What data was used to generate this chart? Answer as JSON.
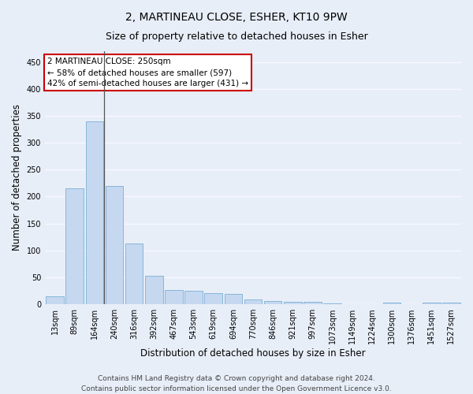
{
  "title": "2, MARTINEAU CLOSE, ESHER, KT10 9PW",
  "subtitle": "Size of property relative to detached houses in Esher",
  "xlabel": "Distribution of detached houses by size in Esher",
  "ylabel": "Number of detached properties",
  "categories": [
    "13sqm",
    "89sqm",
    "164sqm",
    "240sqm",
    "316sqm",
    "392sqm",
    "467sqm",
    "543sqm",
    "619sqm",
    "694sqm",
    "770sqm",
    "846sqm",
    "921sqm",
    "997sqm",
    "1073sqm",
    "1149sqm",
    "1224sqm",
    "1300sqm",
    "1376sqm",
    "1451sqm",
    "1527sqm"
  ],
  "values": [
    15,
    215,
    340,
    220,
    112,
    53,
    26,
    25,
    20,
    19,
    9,
    6,
    4,
    4,
    2,
    0,
    0,
    3,
    0,
    3,
    3
  ],
  "bar_color": "#c5d8f0",
  "bar_edge_color": "#7aafd4",
  "background_color": "#e8eef8",
  "grid_color": "#f8f8ff",
  "annotation_box_text": "2 MARTINEAU CLOSE: 250sqm\n← 58% of detached houses are smaller (597)\n42% of semi-detached houses are larger (431) →",
  "annotation_box_color": "#ffffff",
  "annotation_box_edge_color": "#cc0000",
  "vline_color": "#555555",
  "ylim": [
    0,
    470
  ],
  "yticks": [
    0,
    50,
    100,
    150,
    200,
    250,
    300,
    350,
    400,
    450
  ],
  "footer_line1": "Contains HM Land Registry data © Crown copyright and database right 2024.",
  "footer_line2": "Contains public sector information licensed under the Open Government Licence v3.0.",
  "title_fontsize": 10,
  "subtitle_fontsize": 9,
  "axis_label_fontsize": 8.5,
  "tick_fontsize": 7,
  "annotation_fontsize": 7.5,
  "footer_fontsize": 6.5
}
